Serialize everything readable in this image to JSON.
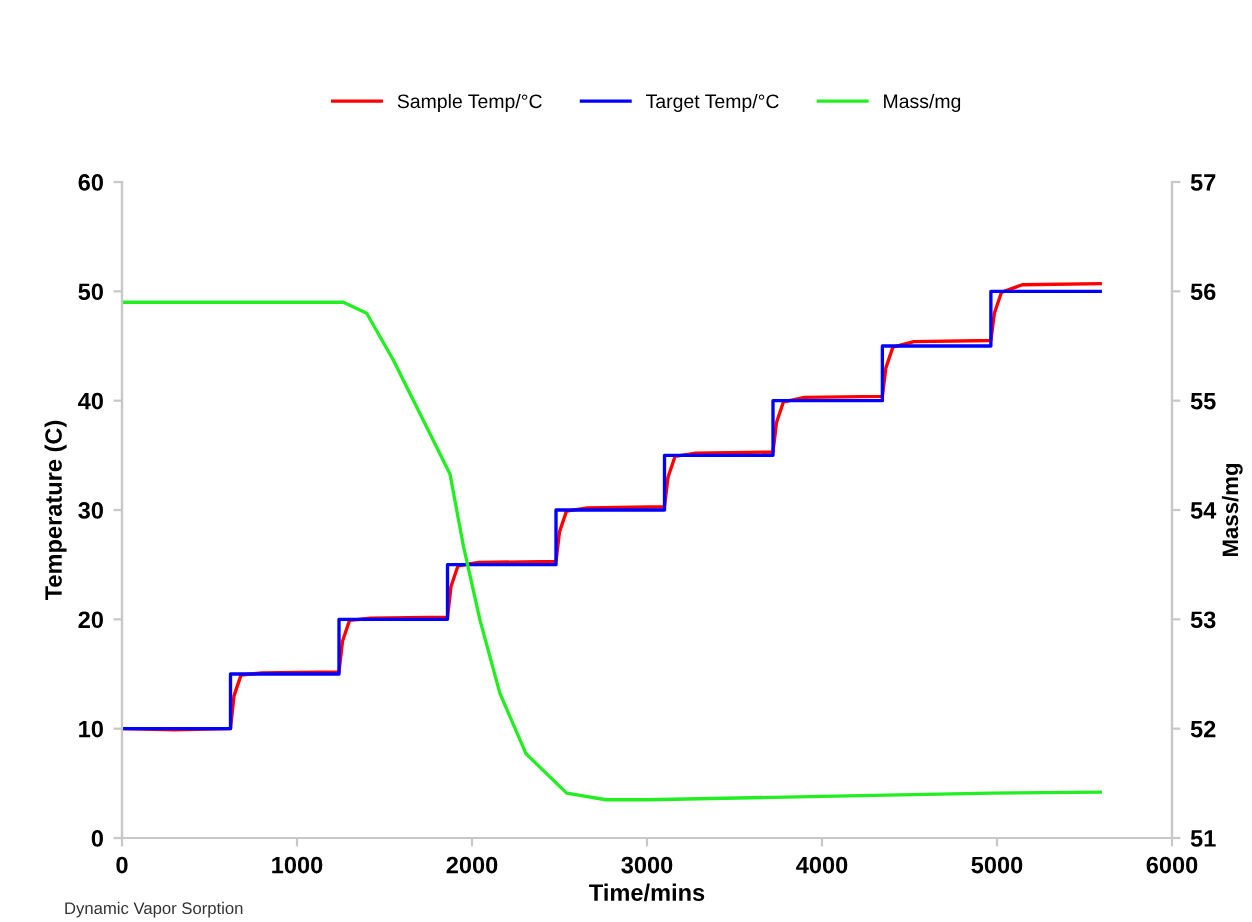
{
  "chart_data": {
    "type": "line",
    "xlabel": "Time/mins",
    "ylabel": "Temperature (C)",
    "y2label": "Mass/mg",
    "xlim": [
      0,
      6000
    ],
    "xticks": [
      0,
      1000,
      2000,
      3000,
      4000,
      5000,
      6000
    ],
    "ylim": [
      0,
      60
    ],
    "yticks": [
      0,
      10,
      20,
      30,
      40,
      50,
      60
    ],
    "y2lim": [
      51,
      57
    ],
    "y2ticks": [
      51,
      52,
      53,
      54,
      55,
      56,
      57
    ],
    "grid": false,
    "legend": "top",
    "marker": "none",
    "line_style": "solid",
    "annotations": [
      "Dynamic Vapor Sorption"
    ],
    "series": [
      {
        "name": "Sample Temp/°C",
        "color": "#ff0000",
        "x": [
          0,
          300,
          620,
          640,
          680,
          800,
          1240,
          1260,
          1300,
          1420,
          1860,
          1880,
          1920,
          2040,
          2480,
          2500,
          2540,
          2660,
          3100,
          3120,
          3160,
          3280,
          3720,
          3740,
          3780,
          3900,
          4345,
          4365,
          4405,
          4525,
          4965,
          4985,
          5025,
          5145,
          5590
        ],
        "values": [
          10,
          9.9,
          10,
          13,
          14.9,
          15.1,
          15.2,
          18,
          19.9,
          20.1,
          20.2,
          23,
          24.9,
          25.2,
          25.3,
          28,
          29.9,
          30.2,
          30.3,
          33,
          34.9,
          35.2,
          35.3,
          38,
          39.9,
          40.3,
          40.4,
          43,
          44.9,
          45.4,
          45.5,
          48,
          49.9,
          50.6,
          50.7
        ]
      },
      {
        "name": "Target Temp/°C",
        "color": "#0000ff",
        "x": [
          0,
          620,
          620,
          1240,
          1240,
          1860,
          1860,
          2480,
          2480,
          3100,
          3100,
          3720,
          3720,
          4345,
          4345,
          4965,
          4965,
          5590
        ],
        "values": [
          10,
          10,
          15,
          15,
          20,
          20,
          25,
          25,
          30,
          30,
          35,
          35,
          40,
          40,
          45,
          45,
          50,
          50
        ]
      },
      {
        "name": "Mass/mg",
        "color": "#22ee22",
        "axis": "y2",
        "x": [
          0,
          1265,
          1398,
          1551,
          1703,
          1874,
          1951,
          2046,
          2160,
          2309,
          2541,
          2766,
          3000,
          4000,
          4968,
          5590
        ],
        "values": [
          55.9,
          55.9,
          55.8,
          55.37,
          54.88,
          54.33,
          53.67,
          52.99,
          52.32,
          51.77,
          51.41,
          51.35,
          51.35,
          51.38,
          51.41,
          51.42
        ]
      }
    ]
  }
}
